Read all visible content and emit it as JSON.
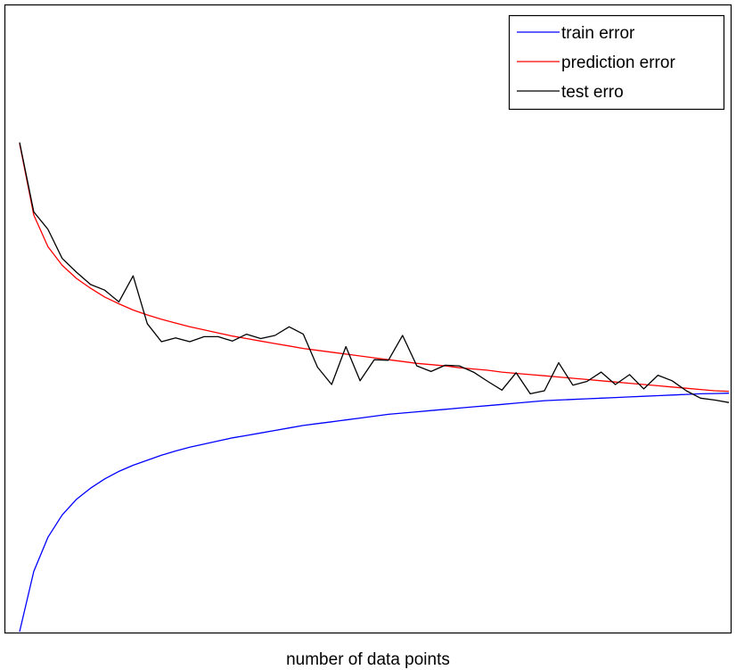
{
  "chart_data": {
    "type": "line",
    "title": "",
    "xlabel": "number of data points",
    "ylabel": "",
    "xlim": [
      0,
      50
    ],
    "ylim": [
      0,
      100
    ],
    "grid": false,
    "legend_position": "top-right",
    "x": [
      0,
      1,
      2,
      3,
      4,
      5,
      6,
      7,
      8,
      9,
      10,
      11,
      12,
      13,
      14,
      15,
      16,
      17,
      18,
      19,
      20,
      21,
      22,
      23,
      24,
      25,
      26,
      27,
      28,
      29,
      30,
      31,
      32,
      33,
      34,
      35,
      36,
      37,
      38,
      39,
      40,
      41,
      42,
      43,
      44,
      45,
      46,
      47,
      48,
      49,
      50
    ],
    "series": [
      {
        "name": "train error",
        "color": "#0000ff",
        "values": [
          0,
          9.7,
          15.2,
          18.8,
          21.3,
          23.1,
          24.6,
          25.8,
          26.8,
          27.6,
          28.4,
          29.1,
          29.7,
          30.2,
          30.7,
          31.2,
          31.6,
          32.0,
          32.4,
          32.8,
          33.2,
          33.5,
          33.8,
          34.1,
          34.4,
          34.7,
          35.0,
          35.2,
          35.4,
          35.6,
          35.8,
          36.0,
          36.2,
          36.4,
          36.6,
          36.8,
          37.0,
          37.2,
          37.3,
          37.4,
          37.5,
          37.6,
          37.7,
          37.8,
          37.9,
          38.0,
          38.1,
          38.2,
          38.3,
          38.35,
          38.4
        ]
      },
      {
        "name": "prediction error",
        "color": "#ff0000",
        "values": [
          78.6,
          67.1,
          62.0,
          59.0,
          56.9,
          55.3,
          53.9,
          52.8,
          51.8,
          51.0,
          50.3,
          49.7,
          49.1,
          48.6,
          48.1,
          47.6,
          47.2,
          46.8,
          46.4,
          46.0,
          45.6,
          45.3,
          45.0,
          44.7,
          44.4,
          44.1,
          43.8,
          43.5,
          43.2,
          43.0,
          42.8,
          42.5,
          42.3,
          42.1,
          41.8,
          41.6,
          41.4,
          41.2,
          41.0,
          40.8,
          40.6,
          40.4,
          40.2,
          40.0,
          39.8,
          39.6,
          39.4,
          39.2,
          39.0,
          38.8,
          38.7
        ]
      },
      {
        "name": "test erro",
        "color": "#000000",
        "values": [
          78.8,
          67.6,
          64.8,
          60.1,
          57.9,
          55.9,
          55.0,
          53.1,
          57.3,
          49.6,
          46.7,
          47.3,
          46.7,
          47.5,
          47.5,
          46.8,
          47.9,
          47.2,
          47.7,
          49.1,
          47.9,
          42.6,
          39.8,
          45.9,
          40.4,
          43.8,
          43.7,
          47.7,
          42.8,
          41.9,
          42.9,
          42.8,
          41.8,
          40.3,
          38.9,
          41.7,
          38.3,
          38.8,
          43.3,
          39.7,
          40.3,
          41.8,
          39.8,
          41.4,
          39.1,
          41.3,
          40.4,
          38.8,
          37.6,
          37.3,
          36.9
        ]
      }
    ]
  }
}
